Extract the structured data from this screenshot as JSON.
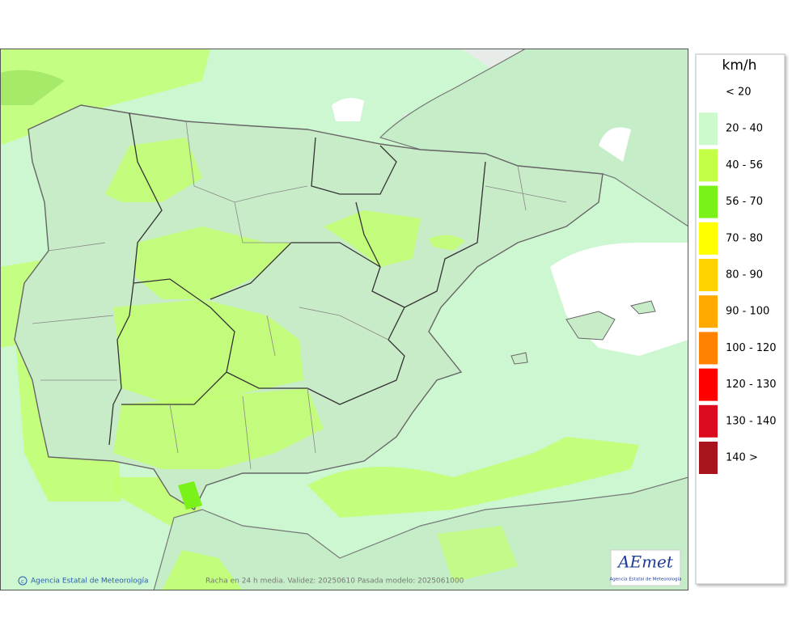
{
  "map": {
    "attribution": "Agencia Estatal de Meteorología",
    "caption": "Racha en 24 h media. Validez: 20250610 Pasada modelo: 2025061000",
    "logo": {
      "name": "AEmet",
      "subtitle": "Agencia Estatal de Meteorología"
    }
  },
  "legend": {
    "title": "km/h",
    "items": [
      {
        "label": "< 20"
      },
      {
        "label": "20 - 40",
        "color": "#ccfacc"
      },
      {
        "label": "40 - 56",
        "color": "#c2ff46"
      },
      {
        "label": "56 - 70",
        "color": "#7af21a"
      },
      {
        "label": "70 - 80",
        "color": "#ffff00"
      },
      {
        "label": "80 - 90",
        "color": "#ffd200"
      },
      {
        "label": "90 - 100",
        "color": "#ffa800"
      },
      {
        "label": "100 - 120",
        "color": "#ff8200"
      },
      {
        "label": "120 - 130",
        "color": "#ff0000"
      },
      {
        "label": "130 - 140",
        "color": "#dc0a1e"
      },
      {
        "label": "140 >",
        "color": "#a8141e"
      }
    ]
  }
}
